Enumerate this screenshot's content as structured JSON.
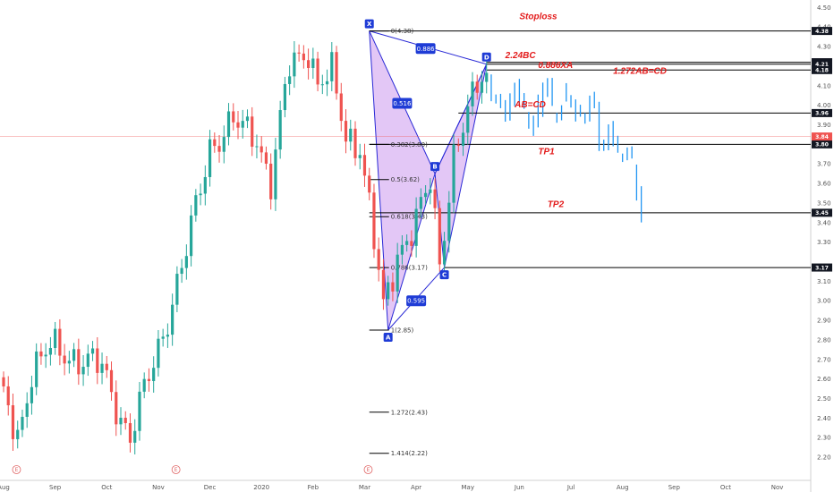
{
  "chart_data": {
    "type": "candlestick",
    "title": "",
    "y_axis": {
      "side": "right",
      "range": [
        2.15,
        4.52
      ],
      "ticks": [
        "4.50",
        "4.40",
        "4.30",
        "4.20",
        "4.10",
        "4.00",
        "3.90",
        "3.70",
        "3.60",
        "3.50",
        "3.40",
        "3.30",
        "3.10",
        "3.00",
        "2.90",
        "2.80",
        "2.70",
        "2.60",
        "2.50",
        "2.40",
        "2.30",
        "2.20"
      ]
    },
    "x_axis": {
      "labels": [
        "Aug",
        "Sep",
        "Oct",
        "Nov",
        "Dec",
        "2020",
        "Feb",
        "Mar",
        "Apr",
        "May",
        "Jun",
        "Jul",
        "Aug",
        "Sep",
        "Oct",
        "Nov"
      ],
      "label_index": [
        0,
        11,
        22,
        33,
        44,
        55,
        66,
        77,
        88,
        99,
        110,
        121,
        132,
        143,
        154,
        165
      ],
      "total_slots": 172
    },
    "current_price": {
      "value": 3.84,
      "label": "3.84",
      "color": "#ef5350"
    },
    "candle_colors": {
      "up": "#26a69a",
      "down": "#ef5350",
      "projection": "#2196f3"
    },
    "pattern": {
      "points": [
        {
          "name": "X",
          "index": 78,
          "price": 4.38
        },
        {
          "name": "A",
          "index": 82,
          "price": 2.85
        },
        {
          "name": "B",
          "index": 92,
          "price": 3.65
        },
        {
          "name": "C",
          "index": 94,
          "price": 3.17
        },
        {
          "name": "D",
          "index": 103,
          "price": 4.21
        }
      ],
      "ratios": [
        {
          "label": "0.886",
          "index": 90,
          "price": 4.29
        },
        {
          "label": "0.516",
          "index": 85,
          "price": 4.01
        },
        {
          "label": "0.595",
          "index": 88,
          "price": 3.0
        }
      ],
      "fill_color": "#cc99ee",
      "line_color": "#2929d6"
    },
    "fib_levels": [
      {
        "label": "0(4.38)",
        "value": 4.38
      },
      {
        "label": "0.382(3.80)",
        "value": 3.8
      },
      {
        "label": "0.5(3.62)",
        "value": 3.62
      },
      {
        "label": "0.618(3.43)",
        "value": 3.43
      },
      {
        "label": "0.786(3.17)",
        "value": 3.17
      },
      {
        "label": "1(2.85)",
        "value": 2.85
      },
      {
        "label": "1.272(2.43)",
        "value": 2.43
      },
      {
        "label": "1.414(2.22)",
        "value": 2.22
      }
    ],
    "horizontal_levels": [
      {
        "value": 4.38,
        "label": "4.38",
        "from_index": 78
      },
      {
        "value": 4.22,
        "label": "4.22",
        "from_index": 103
      },
      {
        "value": 4.21,
        "label": "4.21",
        "from_index": 103
      },
      {
        "value": 4.18,
        "label": "4.18",
        "from_index": 103
      },
      {
        "value": 3.96,
        "label": "3.96",
        "from_index": 97
      },
      {
        "value": 3.8,
        "label": "3.80",
        "from_index": 78
      },
      {
        "value": 3.45,
        "label": "3.45",
        "from_index": 78
      },
      {
        "value": 3.17,
        "label": "3.17",
        "from_index": 94
      }
    ],
    "annotations": [
      {
        "text": "Stoploss",
        "index": 110,
        "price": 4.44
      },
      {
        "text": "2.24BC",
        "index": 107,
        "price": 4.24
      },
      {
        "text": "0.886XA",
        "index": 114,
        "price": 4.19
      },
      {
        "text": "1.272AB=CD",
        "index": 130,
        "price": 4.16
      },
      {
        "text": "AB=CD",
        "index": 109,
        "price": 3.99
      },
      {
        "text": "TP1",
        "index": 114,
        "price": 3.75
      },
      {
        "text": "TP2",
        "index": 116,
        "price": 3.48
      }
    ],
    "event_markers": {
      "text": "E",
      "indices": [
        2,
        36,
        77
      ]
    }
  }
}
